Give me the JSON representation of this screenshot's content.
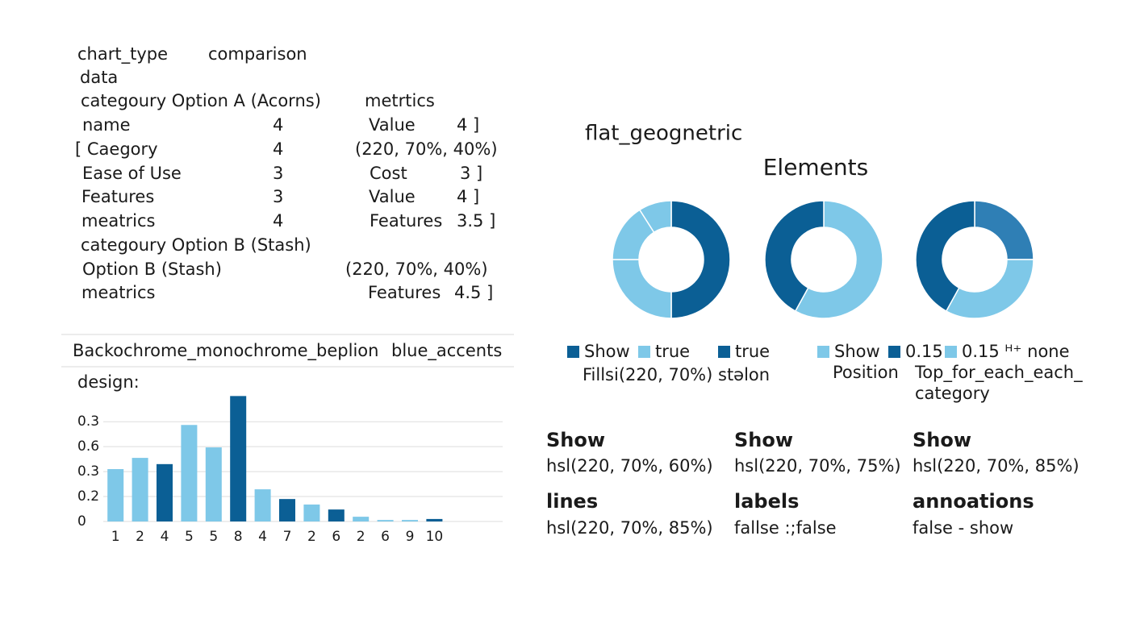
{
  "spec": {
    "rows": [
      [
        "chart_type",
        "comparison"
      ],
      [
        "data"
      ],
      [
        "categoury Option A (Acorns)",
        "metrtics"
      ],
      [
        "name",
        "4",
        "Value",
        "4 ]"
      ],
      [
        "[ Caegory",
        "4",
        "(220, 70%, 40%)"
      ],
      [
        "Ease of Use",
        "3",
        "Cost",
        "3 ]"
      ],
      [
        "Features",
        "3",
        "Value",
        "4 ]"
      ],
      [
        "meatrics",
        "4",
        "Features",
        "3.5 ]"
      ],
      [
        "categoury Option B (Stash)"
      ],
      [
        "Option B (Stash)",
        "(220, 70%, 40%)"
      ],
      [
        "meatrics",
        "Features",
        "4.5 ]"
      ]
    ]
  },
  "banner": [
    "Backochrome_monochrome_beplion",
    "blue_accents"
  ],
  "design_label": "design:",
  "bar_chart": {
    "type": "bar",
    "categories": [
      "1",
      "2",
      "4",
      "5",
      "5",
      "8",
      "4",
      "7",
      "2",
      "6",
      "2",
      "6",
      "9",
      "10"
    ],
    "values": [
      2.1,
      2.55,
      2.3,
      3.87,
      2.97,
      5.03,
      1.29,
      0.9,
      0.68,
      0.48,
      0.19,
      0.06,
      0.06,
      0.1
    ],
    "colors": [
      "#7ec8e8",
      "#7ec8e8",
      "#0b5f95",
      "#7ec8e8",
      "#7ec8e8",
      "#0b5f95",
      "#7ec8e8",
      "#0b5f95",
      "#7ec8e8",
      "#0b5f95",
      "#7ec8e8",
      "#7ec8e8",
      "#7ec8e8",
      "#0b5f95"
    ],
    "ylim": [
      0,
      5.3
    ],
    "yticks": [
      0,
      {
        "value": 1,
        "label": "0.2"
      },
      {
        "value": 2,
        "label": "0.3"
      },
      {
        "value": 3,
        "label": "0.6"
      },
      {
        "value": 4,
        "label": "0.3"
      }
    ],
    "grid": true
  },
  "right_panel": {
    "title": "flat_geognetric",
    "subtitle": "Elements"
  },
  "donut_charts": {
    "type": "donut",
    "charts": [
      {
        "values": [
          50,
          25,
          16,
          9
        ],
        "colors": [
          "#0b5f95",
          "#7ec8e8",
          "#7ec8e8",
          "#7ec8e8"
        ]
      },
      {
        "values": [
          58,
          42
        ],
        "colors": [
          "#7ec8e8",
          "#0b5f95"
        ]
      },
      {
        "values": [
          25,
          33,
          42
        ],
        "colors": [
          "#2f7fb5",
          "#7ec8e8",
          "#0b5f95"
        ]
      }
    ]
  },
  "legend": {
    "items": [
      {
        "label": "Show",
        "color": "#0b5f95"
      },
      {
        "label": "true",
        "color": "#7ec8e8"
      },
      {
        "label": "true",
        "color": "#0b5f95"
      },
      {
        "label": "Show",
        "color": "#7ec8e8"
      },
      {
        "label": "0.15",
        "color": "#0b5f95"
      },
      {
        "label": "0.15 ᴴ⁺ none",
        "color": "#7ec8e8"
      }
    ],
    "notes": [
      "Fillsі(220, 70%) stəlon",
      "Position",
      "Top_for_each_each_",
      "category"
    ]
  },
  "settings": {
    "rows": [
      [
        {
          "heading": "Show",
          "value": "hsl(220, 70%, 60%)"
        },
        {
          "heading": "Show",
          "value": "hsl(220, 70%, 75%)"
        },
        {
          "heading": "Show",
          "value": "hsl(220, 70%, 85%)"
        }
      ],
      [
        {
          "heading": "lines",
          "value": "hsl(220, 70%, 85%)"
        },
        {
          "heading": "labels",
          "value": "fallse :;false"
        },
        {
          "heading": "annoations",
          "value": "false - show"
        }
      ]
    ]
  }
}
